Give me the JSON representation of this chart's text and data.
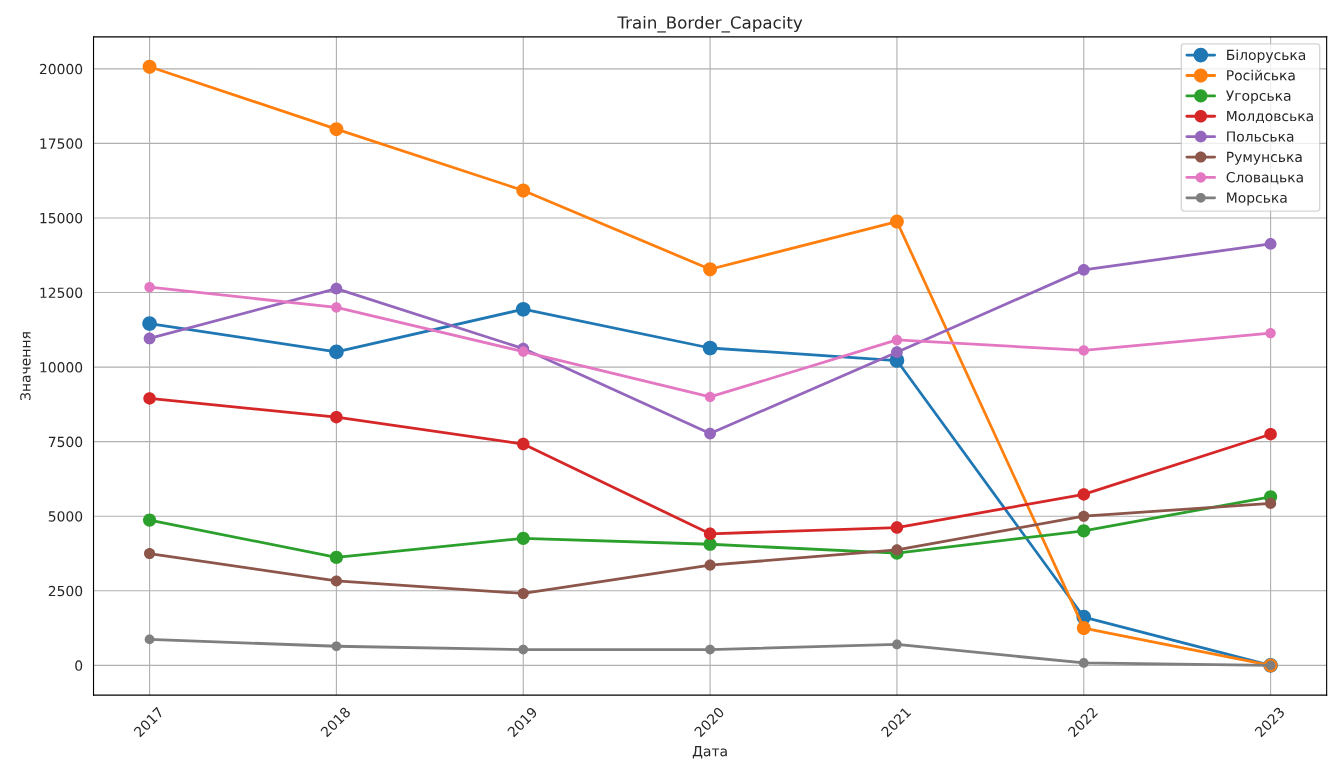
{
  "chart_data": {
    "type": "line",
    "title": "Train_Border_Capacity",
    "xlabel": "Дата",
    "ylabel": "Значення",
    "x": [
      2017,
      2018,
      2019,
      2020,
      2021,
      2022,
      2023
    ],
    "series": [
      {
        "name": "Білоруська",
        "color": "#1f77b4",
        "values": [
          11460,
          10510,
          11940,
          10640,
          10220,
          1620,
          0
        ]
      },
      {
        "name": "Російська",
        "color": "#ff7f0e",
        "values": [
          20070,
          17980,
          15920,
          13280,
          14880,
          1250,
          0
        ]
      },
      {
        "name": "Угорська",
        "color": "#2ca02c",
        "values": [
          4870,
          3620,
          4260,
          4060,
          3760,
          4510,
          5650
        ]
      },
      {
        "name": "Молдовська",
        "color": "#d62728",
        "values": [
          8950,
          8320,
          7420,
          4410,
          4620,
          5730,
          7750
        ]
      },
      {
        "name": "Польська",
        "color": "#9467bd",
        "values": [
          10960,
          12630,
          10620,
          7770,
          10500,
          13260,
          14130
        ]
      },
      {
        "name": "Румунська",
        "color": "#8c564b",
        "values": [
          3750,
          2830,
          2410,
          3360,
          3870,
          5000,
          5430
        ]
      },
      {
        "name": "Словацька",
        "color": "#e377c2",
        "values": [
          12680,
          12000,
          10520,
          9000,
          10910,
          10560,
          11140
        ]
      },
      {
        "name": "Морська",
        "color": "#7f7f7f",
        "values": [
          870,
          640,
          530,
          530,
          700,
          80,
          0
        ]
      }
    ],
    "xlim": [
      2016.7,
      2023.3
    ],
    "xticks": [
      2017,
      2018,
      2019,
      2020,
      2021,
      2022,
      2023
    ],
    "ylim": [
      -1000,
      21070
    ],
    "yticks": [
      0,
      2500,
      5000,
      7500,
      10000,
      12500,
      15000,
      17500,
      20000
    ],
    "grid": true,
    "legend": "top right",
    "marker": "circle",
    "line_style": "solid"
  }
}
